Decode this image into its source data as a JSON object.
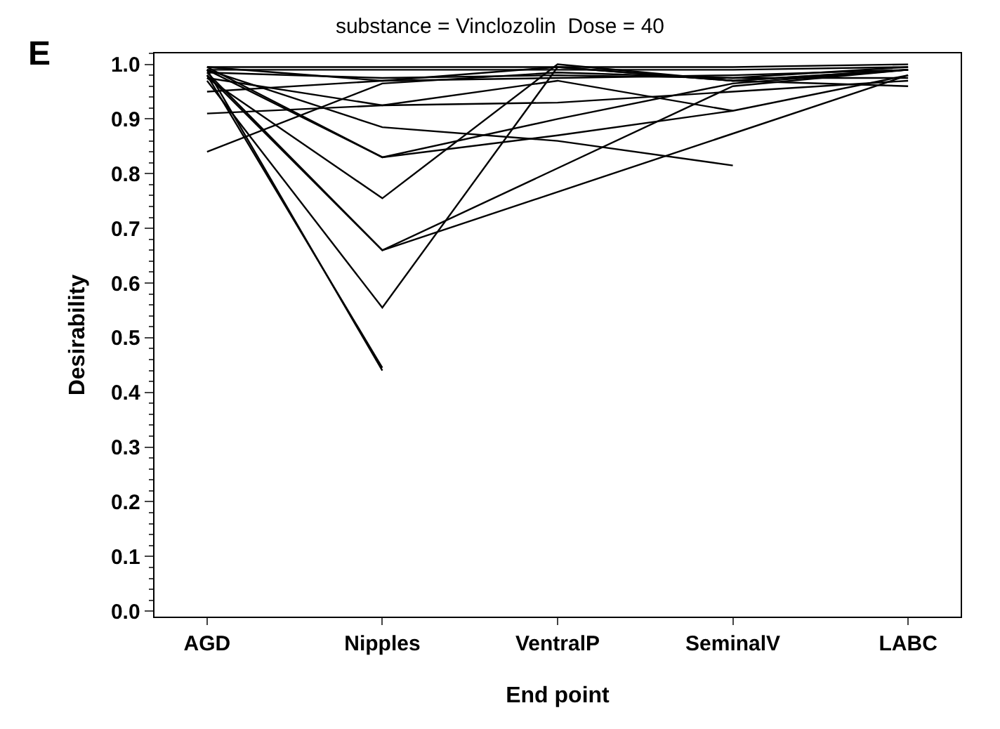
{
  "chart_data": {
    "type": "line",
    "title": "substance = Vinclozolin  Dose = 40",
    "xlabel": "End point",
    "ylabel": "Desirability",
    "annotations": [
      "E"
    ],
    "categories": [
      "AGD",
      "Nipples",
      "VentralP",
      "SeminalV",
      "LABC"
    ],
    "ylim": [
      -0.01,
      1.02
    ],
    "yticks": [
      {
        "value": 0,
        "label": "0.0"
      },
      0.1,
      0.2,
      0.3,
      0.4,
      0.5,
      0.6,
      0.7,
      0.8,
      0.9,
      {
        "value": 1,
        "label": "1.0"
      }
    ],
    "grid": false,
    "marker": "none",
    "line_style": "solid",
    "series": [
      {
        "color": "#000000",
        "values": [
          0.99,
          0.44,
          null,
          null,
          null
        ]
      },
      {
        "color": "#000000",
        "values": [
          0.98,
          0.445,
          null,
          null,
          null
        ]
      },
      {
        "color": "#000000",
        "values": [
          0.97,
          0.555,
          0.995,
          0.97,
          0.99
        ]
      },
      {
        "color": "#000000",
        "values": [
          0.985,
          0.66,
          null,
          0.96,
          0.99
        ]
      },
      {
        "color": "#000000",
        "values": [
          0.98,
          0.66,
          null,
          null,
          0.98
        ]
      },
      {
        "color": "#000000",
        "values": [
          0.975,
          0.755,
          1.0,
          0.97,
          0.99
        ]
      },
      {
        "color": "#000000",
        "values": [
          0.99,
          0.83,
          0.9,
          0.965,
          0.99
        ]
      },
      {
        "color": "#000000",
        "values": [
          0.995,
          0.83,
          0.87,
          0.915,
          0.98
        ]
      },
      {
        "color": "#000000",
        "values": [
          0.99,
          0.885,
          0.86,
          0.815,
          null
        ]
      },
      {
        "color": "#000000",
        "values": [
          0.91,
          0.925,
          0.93,
          0.95,
          0.97
        ]
      },
      {
        "color": "#000000",
        "values": [
          0.84,
          0.965,
          0.985,
          0.975,
          0.995
        ]
      },
      {
        "color": "#000000",
        "values": [
          0.95,
          0.97,
          0.975,
          0.98,
          0.99
        ]
      },
      {
        "color": "#000000",
        "values": [
          0.995,
          0.97,
          0.995,
          0.97,
          0.96
        ]
      },
      {
        "color": "#000000",
        "values": [
          0.99,
          0.99,
          0.99,
          0.99,
          0.995
        ]
      },
      {
        "color": "#000000",
        "values": [
          0.985,
          0.975,
          0.98,
          0.975,
          0.975
        ]
      },
      {
        "color": "#000000",
        "values": [
          0.995,
          0.995,
          0.995,
          0.995,
          1.0
        ]
      },
      {
        "color": "#000000",
        "values": [
          0.975,
          0.925,
          0.97,
          0.915,
          null
        ]
      }
    ]
  }
}
